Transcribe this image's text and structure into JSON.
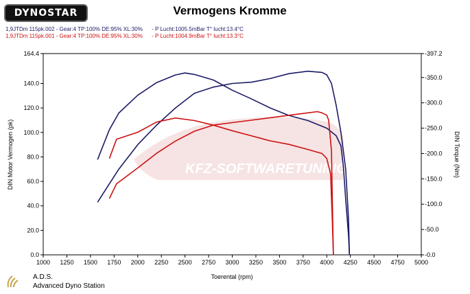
{
  "brand": "DYNOSTAR",
  "chart_title": "Vermogens Kromme",
  "runs": [
    {
      "label": "1,9JTDm 115pk.002 - Gear:4 TP:100% DE:95% XL:30%",
      "conditions": "- P Lucht:1005.5mBar T° lucht:13.4°C",
      "color": "#1a1a66"
    },
    {
      "label": "1,9JTDm 115pk.001 - Gear:4 TP:100% DE:95% XL:30%",
      "conditions": "- P Lucht:1004.9mBar T° lucht:13.3°C",
      "color": "#cc1111"
    }
  ],
  "watermark": "KFZ-SOFTWARETUNING",
  "footer": {
    "abbr": "A.D.S.",
    "name": "Advanced Dyno Station"
  },
  "chart_data": {
    "type": "line",
    "title": "Vermogens Kromme",
    "xlabel": "Toerental (rpm)",
    "ylabel_left": "DIN Motor Vermogen (pk)",
    "ylabel_right": "DIN Torque (Nm)",
    "xlim": [
      1000,
      5000
    ],
    "ylim_left": [
      0,
      164.4
    ],
    "ylim_right": [
      0,
      397.2
    ],
    "x_ticks": [
      "1000",
      "1250",
      "1500",
      "1750",
      "2000",
      "2250",
      "2500",
      "2750",
      "3000",
      "3250",
      "3500",
      "3750",
      "4000",
      "4250",
      "4500",
      "4750",
      "5000"
    ],
    "y_left_ticks": [
      "0.0",
      "20.0",
      "40.0",
      "60.0",
      "80.0",
      "100.0",
      "120.0",
      "140.0",
      "164.4"
    ],
    "y_right_ticks": [
      "-0.0",
      "-50.0",
      "-100.0",
      "-150.0",
      "-200.0",
      "-250.0",
      "-300.0",
      "-350.0",
      "-397.2"
    ],
    "grid": false,
    "series": [
      {
        "name": "1,9JTDm 115pk.002 power",
        "axis": "left",
        "color": "#1a1a66",
        "x": [
          1575,
          1700,
          1800,
          2000,
          2200,
          2400,
          2600,
          2800,
          3000,
          3200,
          3400,
          3600,
          3800,
          3950,
          4000,
          4050,
          4100,
          4150,
          4175,
          4200,
          4230,
          4240
        ],
        "y": [
          43,
          58,
          70,
          90,
          106,
          120,
          132,
          137,
          140,
          141,
          144,
          148,
          150,
          149,
          147,
          140,
          122,
          100,
          85,
          70,
          30,
          0
        ]
      },
      {
        "name": "1,9JTDm 115pk.002 torque",
        "axis": "right",
        "color": "#1a1a66",
        "x": [
          1575,
          1700,
          1800,
          2000,
          2200,
          2400,
          2500,
          2600,
          2800,
          3000,
          3200,
          3400,
          3600,
          3800,
          4000,
          4100,
          4150,
          4175,
          4200,
          4230,
          4240
        ],
        "y": [
          188,
          247,
          280,
          315,
          340,
          355,
          359,
          356,
          345,
          325,
          308,
          290,
          275,
          265,
          250,
          235,
          215,
          175,
          110,
          40,
          0
        ]
      },
      {
        "name": "1,9JTDm 115pk.001 power",
        "axis": "left",
        "color": "#cc1111",
        "x": [
          1700,
          1775,
          2000,
          2200,
          2400,
          2600,
          2800,
          3000,
          3200,
          3400,
          3600,
          3800,
          3900,
          3950,
          4000,
          4020,
          4050,
          4060,
          4070
        ],
        "y": [
          46,
          58,
          71,
          83,
          93,
          101,
          106,
          108,
          110,
          112,
          114,
          116,
          117,
          116,
          114,
          110,
          85,
          40,
          0
        ]
      },
      {
        "name": "1,9JTDm 115pk.001 torque",
        "axis": "right",
        "color": "#cc1111",
        "x": [
          1700,
          1775,
          2000,
          2200,
          2400,
          2600,
          2800,
          3000,
          3200,
          3400,
          3600,
          3800,
          3950,
          4000,
          4040,
          4060,
          4070
        ],
        "y": [
          190,
          228,
          242,
          262,
          270,
          265,
          256,
          245,
          235,
          225,
          218,
          208,
          200,
          190,
          160,
          60,
          0
        ]
      }
    ]
  }
}
